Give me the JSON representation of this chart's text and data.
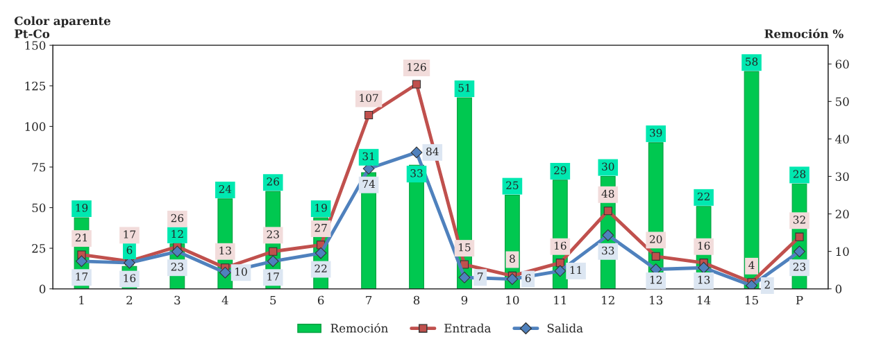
{
  "chart_data": {
    "type": "bar",
    "ylabel": "Color aparente\nPt-Co",
    "y2label": "Remoción %",
    "categories": [
      "1",
      "2",
      "3",
      "4",
      "5",
      "6",
      "7",
      "8",
      "9",
      "10",
      "11",
      "12",
      "13",
      "14",
      "15",
      "P"
    ],
    "series": [
      {
        "name": "Remoción",
        "axis": "y2",
        "color": "#00c850",
        "values": [
          19,
          6,
          12,
          24,
          26,
          19,
          31,
          33,
          51,
          25,
          29,
          30,
          39,
          22,
          58,
          28
        ]
      },
      {
        "name": "Entrada",
        "type": "line",
        "color": "#c0504d",
        "marker": "square",
        "values": [
          21,
          17,
          26,
          13,
          23,
          27,
          107,
          126,
          15,
          8,
          16,
          48,
          20,
          16,
          4,
          32
        ]
      },
      {
        "name": "Salida",
        "type": "line",
        "color": "#4f81bd",
        "marker": "diamond",
        "values": [
          17,
          16,
          23,
          10,
          17,
          22,
          74,
          84,
          7,
          6,
          11,
          33,
          12,
          13,
          2,
          23
        ]
      }
    ],
    "ylim": [
      0,
      150
    ],
    "yticks": [
      0,
      25,
      50,
      75,
      100,
      125,
      150
    ],
    "y2lim": [
      0,
      65
    ],
    "y2ticks": [
      0,
      10,
      20,
      30,
      40,
      50,
      60
    ],
    "data_labels": true,
    "grid": false,
    "legend": "bottom"
  }
}
